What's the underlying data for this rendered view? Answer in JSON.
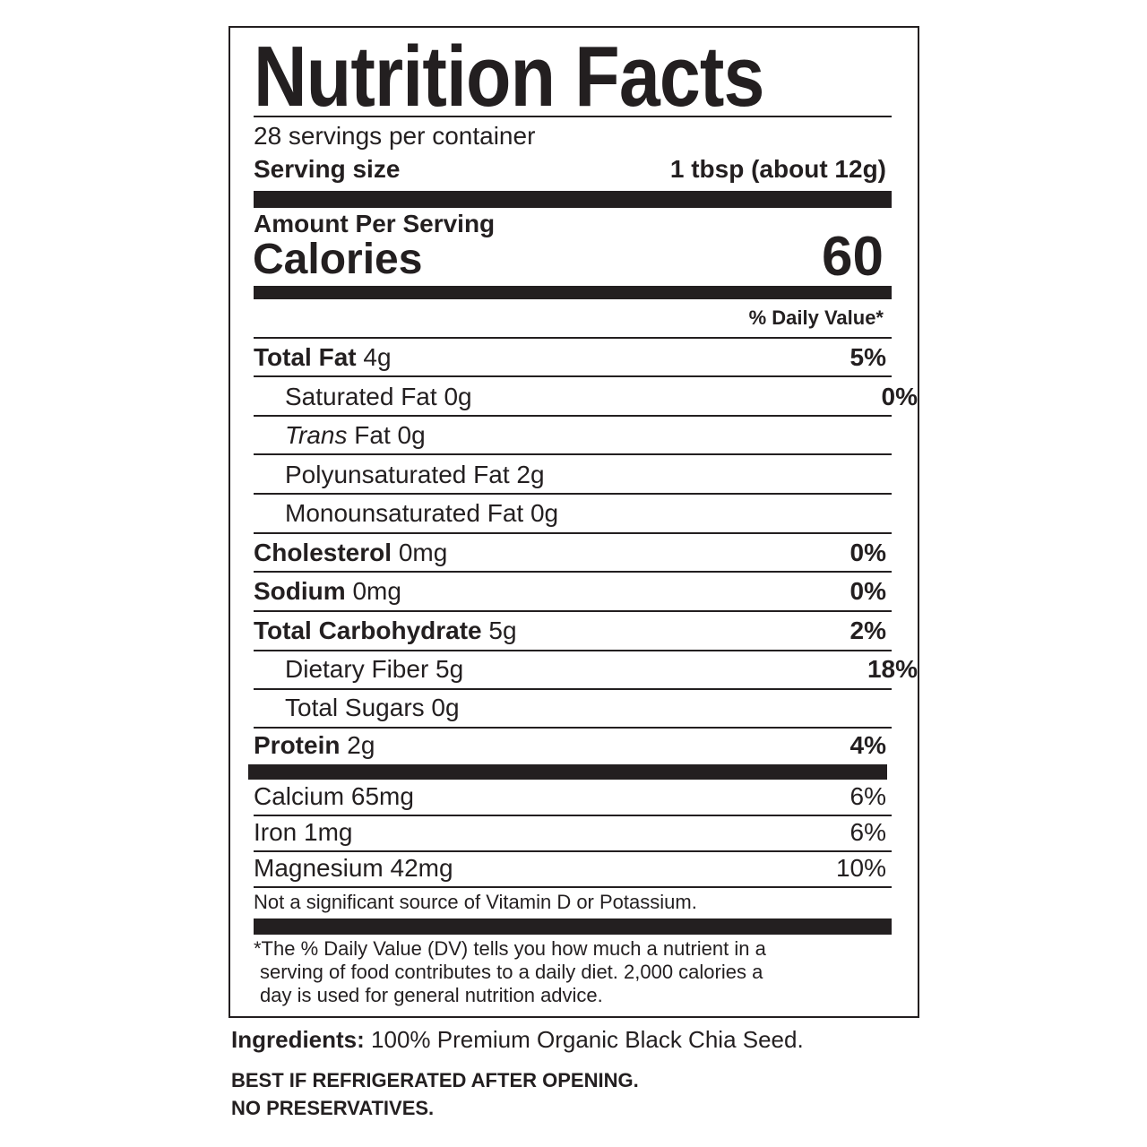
{
  "title": "Nutrition Facts",
  "servings_per_container": "28 servings per container",
  "serving_size": {
    "label": "Serving size",
    "value": "1 tbsp (about 12g)"
  },
  "amount_per_serving": "Amount Per Serving",
  "calories": {
    "label": "Calories",
    "value": "60"
  },
  "dv_header": "% Daily Value*",
  "nutrients": [
    {
      "name": "Total Fat",
      "amount": "4g",
      "dv": "5%"
    },
    {
      "name": "Saturated Fat",
      "amount": "0g",
      "dv": "0%"
    },
    {
      "name_italic": "Trans",
      "name": "Fat",
      "amount": "0g"
    },
    {
      "name": "Polyunsaturated Fat",
      "amount": "2g"
    },
    {
      "name": "Monounsaturated Fat",
      "amount": "0g"
    },
    {
      "name": "Cholesterol",
      "amount": "0mg",
      "dv": "0%"
    },
    {
      "name": "Sodium",
      "amount": "0mg",
      "dv": "0%"
    },
    {
      "name": "Total Carbohydrate",
      "amount": "5g",
      "dv": "2%"
    },
    {
      "name": "Dietary Fiber",
      "amount": "5g",
      "dv": "18%"
    },
    {
      "name": "Total Sugars",
      "amount": "0g"
    },
    {
      "name": "Protein",
      "amount": "2g",
      "dv": "4%"
    }
  ],
  "minerals": [
    {
      "name": "Calcium 65mg",
      "dv": "6%"
    },
    {
      "name": "Iron 1mg",
      "dv": "6%"
    },
    {
      "name": "Magnesium 42mg",
      "dv": "10%"
    }
  ],
  "not_significant": "Not a significant source of Vitamin D or Potassium.",
  "footnote": [
    "*The % Daily Value (DV) tells you how much a nutrient in a",
    "serving of food contributes to a daily diet. 2,000 calories a",
    "day is used for general nutrition advice."
  ],
  "ingredients": {
    "label": "Ingredients:",
    "text": "100% Premium Organic Black Chia Seed."
  },
  "notes": [
    "BEST IF REFRIGERATED AFTER OPENING.",
    "NO PRESERVATIVES."
  ]
}
